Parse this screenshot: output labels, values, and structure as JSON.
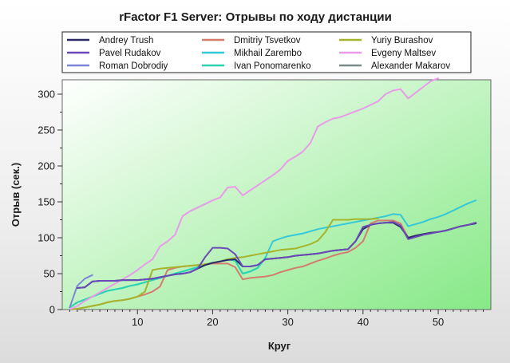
{
  "chart_data": {
    "type": "line",
    "title": "rFactor F1 Server: Отрывы по ходу дистанции",
    "xlabel": "Круг",
    "ylabel": "Отрыв (сек.)",
    "xlim": [
      0,
      57
    ],
    "ylim": [
      0,
      320
    ],
    "xticks": [
      10,
      20,
      30,
      40,
      50
    ],
    "yticks": [
      0,
      50,
      100,
      150,
      200,
      250,
      300
    ],
    "grid": false,
    "legend_position": "top",
    "series": [
      {
        "name": "Andrey Trush",
        "color": "#2b2b6a",
        "x": [
          2,
          3,
          4,
          5,
          6,
          7,
          8,
          9,
          10,
          11,
          12,
          13,
          14,
          15,
          16,
          17,
          18,
          19,
          20,
          21,
          22,
          23,
          24,
          25,
          26,
          27,
          28,
          29,
          30,
          31,
          32,
          33,
          34,
          35,
          36,
          37,
          38,
          39,
          40,
          41,
          42,
          43,
          44,
          45,
          46,
          47,
          48,
          49,
          50,
          51,
          52,
          53,
          54,
          55
        ],
        "values": [
          30,
          31,
          39,
          40,
          40,
          40,
          41,
          41,
          41,
          42,
          43,
          45,
          47,
          49,
          50,
          52,
          57,
          62,
          65,
          67,
          69,
          70,
          60,
          60,
          62,
          70,
          71,
          72,
          73,
          75,
          76,
          77,
          78,
          80,
          82,
          83,
          84,
          95,
          112,
          118,
          120,
          121,
          121,
          115,
          100,
          103,
          105,
          107,
          108,
          110,
          113,
          116,
          118,
          120
        ]
      },
      {
        "name": "Pavel Rudakov",
        "color": "#6a4ab8",
        "x": [
          2,
          3,
          4,
          5,
          6,
          7,
          8,
          9,
          10,
          11,
          12,
          13,
          14,
          15,
          16,
          17,
          18,
          19,
          20,
          21,
          22,
          23,
          24,
          25,
          26,
          27,
          28,
          29,
          30,
          31,
          32,
          33,
          34,
          35,
          36,
          37,
          38,
          39,
          40,
          41,
          42,
          43,
          44,
          45,
          46,
          47,
          48,
          49,
          50,
          51,
          52,
          53,
          54,
          55
        ],
        "values": [
          30,
          31,
          39,
          40,
          40,
          40,
          41,
          41,
          41,
          42,
          43,
          45,
          47,
          49,
          50,
          52,
          57,
          73,
          86,
          86,
          85,
          77,
          60,
          60,
          62,
          70,
          71,
          72,
          73,
          75,
          76,
          77,
          78,
          80,
          82,
          83,
          84,
          95,
          115,
          118,
          120,
          121,
          122,
          117,
          98,
          101,
          104,
          106,
          108,
          110,
          113,
          116,
          118,
          121
        ]
      },
      {
        "name": "Roman Dobrodiy",
        "color": "#7b86d8",
        "x": [
          1,
          2,
          3,
          4
        ],
        "values": [
          3,
          33,
          43,
          48
        ]
      },
      {
        "name": "Dmitriy Tsvetkov",
        "color": "#d47d6e",
        "x": [
          1,
          2,
          3,
          4,
          5,
          6,
          7,
          8,
          9,
          10,
          11,
          12,
          13,
          14,
          15,
          16,
          17,
          18,
          19,
          20,
          21,
          22,
          23,
          24,
          25,
          26,
          27,
          28,
          29,
          30,
          31,
          32,
          33,
          34,
          35,
          36,
          37,
          38,
          39,
          40,
          41,
          42,
          43,
          44,
          45,
          46,
          47,
          48,
          49,
          50,
          51,
          52,
          53,
          54,
          55
        ],
        "values": [
          0,
          1,
          3,
          5,
          7,
          10,
          12,
          13,
          15,
          18,
          21,
          25,
          32,
          55,
          58,
          60,
          61,
          62,
          63,
          64,
          64,
          64,
          59,
          42,
          44,
          45,
          46,
          48,
          52,
          55,
          58,
          60,
          64,
          68,
          71,
          75,
          78,
          80,
          86,
          95,
          120,
          124,
          124,
          124,
          120,
          100,
          103,
          105,
          107,
          108,
          110,
          113,
          116,
          118,
          121
        ]
      },
      {
        "name": "Mikhail Zarembo",
        "color": "#35c8d8",
        "x": [
          1,
          2,
          3,
          4,
          5,
          6,
          7,
          8,
          9,
          10,
          11,
          12,
          13,
          14,
          15,
          16,
          17,
          18,
          19,
          20,
          21,
          22,
          23,
          24,
          25,
          26,
          27,
          28,
          29,
          30,
          31,
          32,
          33,
          34,
          35,
          36,
          37,
          38,
          39,
          40,
          41,
          42,
          43,
          44,
          45,
          46,
          47,
          48,
          49,
          50,
          51,
          52,
          53,
          54,
          55
        ],
        "values": [
          3,
          10,
          14,
          18,
          22,
          26,
          28,
          30,
          33,
          35,
          38,
          41,
          44,
          47,
          50,
          53,
          56,
          59,
          62,
          65,
          67,
          70,
          68,
          50,
          53,
          58,
          72,
          95,
          99,
          102,
          104,
          106,
          109,
          112,
          114,
          116,
          118,
          120,
          122,
          124,
          126,
          128,
          130,
          133,
          132,
          116,
          119,
          122,
          126,
          129,
          133,
          138,
          143,
          148,
          152
        ]
      },
      {
        "name": "Ivan Ponomarenko",
        "color": "#2ad4b0",
        "x": [
          1,
          2,
          3,
          4,
          5,
          6,
          7,
          8,
          9,
          10,
          11,
          12,
          13,
          14,
          15,
          16,
          17,
          18,
          19,
          20,
          21,
          22,
          23,
          24,
          25,
          26,
          27
        ],
        "values": [
          3,
          10,
          14,
          18,
          22,
          26,
          28,
          30,
          33,
          35,
          38,
          41,
          44,
          47,
          50,
          53,
          56,
          59,
          62,
          65,
          67,
          70,
          68,
          50,
          53,
          58,
          72
        ]
      },
      {
        "name": "Yuriy Burashov",
        "color": "#a5b42a",
        "x": [
          1,
          2,
          3,
          4,
          5,
          6,
          7,
          8,
          9,
          10,
          11,
          12,
          13,
          14,
          15,
          16,
          17,
          18,
          19,
          20,
          21,
          22,
          23,
          24,
          25,
          26,
          27,
          28,
          29,
          30,
          31,
          32,
          33,
          34,
          35,
          36,
          37,
          38,
          39,
          40,
          41,
          42
        ],
        "values": [
          0,
          1,
          3,
          5,
          7,
          10,
          12,
          13,
          15,
          18,
          25,
          55,
          57,
          58,
          59,
          60,
          61,
          62,
          63,
          65,
          67,
          70,
          72,
          73,
          75,
          77,
          79,
          81,
          83,
          84,
          85,
          88,
          91,
          96,
          108,
          125,
          125,
          125,
          126,
          126,
          126,
          127
        ]
      },
      {
        "name": "Evgeny Maltsev",
        "color": "#e99ae8",
        "x": [
          1,
          2,
          3,
          4,
          5,
          6,
          7,
          8,
          9,
          10,
          11,
          12,
          13,
          14,
          15,
          16,
          17,
          18,
          19,
          20,
          21,
          22,
          23,
          24,
          25,
          26,
          27,
          28,
          29,
          30,
          31,
          32,
          33,
          34,
          35,
          36,
          37,
          38,
          39,
          40,
          41,
          42,
          43,
          44,
          45,
          46,
          47,
          48,
          49,
          50
        ],
        "values": [
          0,
          5,
          12,
          18,
          24,
          30,
          36,
          42,
          48,
          55,
          63,
          70,
          88,
          95,
          104,
          130,
          137,
          142,
          147,
          152,
          156,
          170,
          171,
          159,
          166,
          173,
          180,
          187,
          195,
          207,
          213,
          220,
          232,
          255,
          261,
          266,
          268,
          272,
          276,
          280,
          285,
          290,
          300,
          305,
          307,
          294,
          302,
          310,
          318,
          322
        ]
      },
      {
        "name": "Alexander Makarov",
        "color": "#7a8a8a",
        "x": [],
        "values": []
      }
    ]
  }
}
